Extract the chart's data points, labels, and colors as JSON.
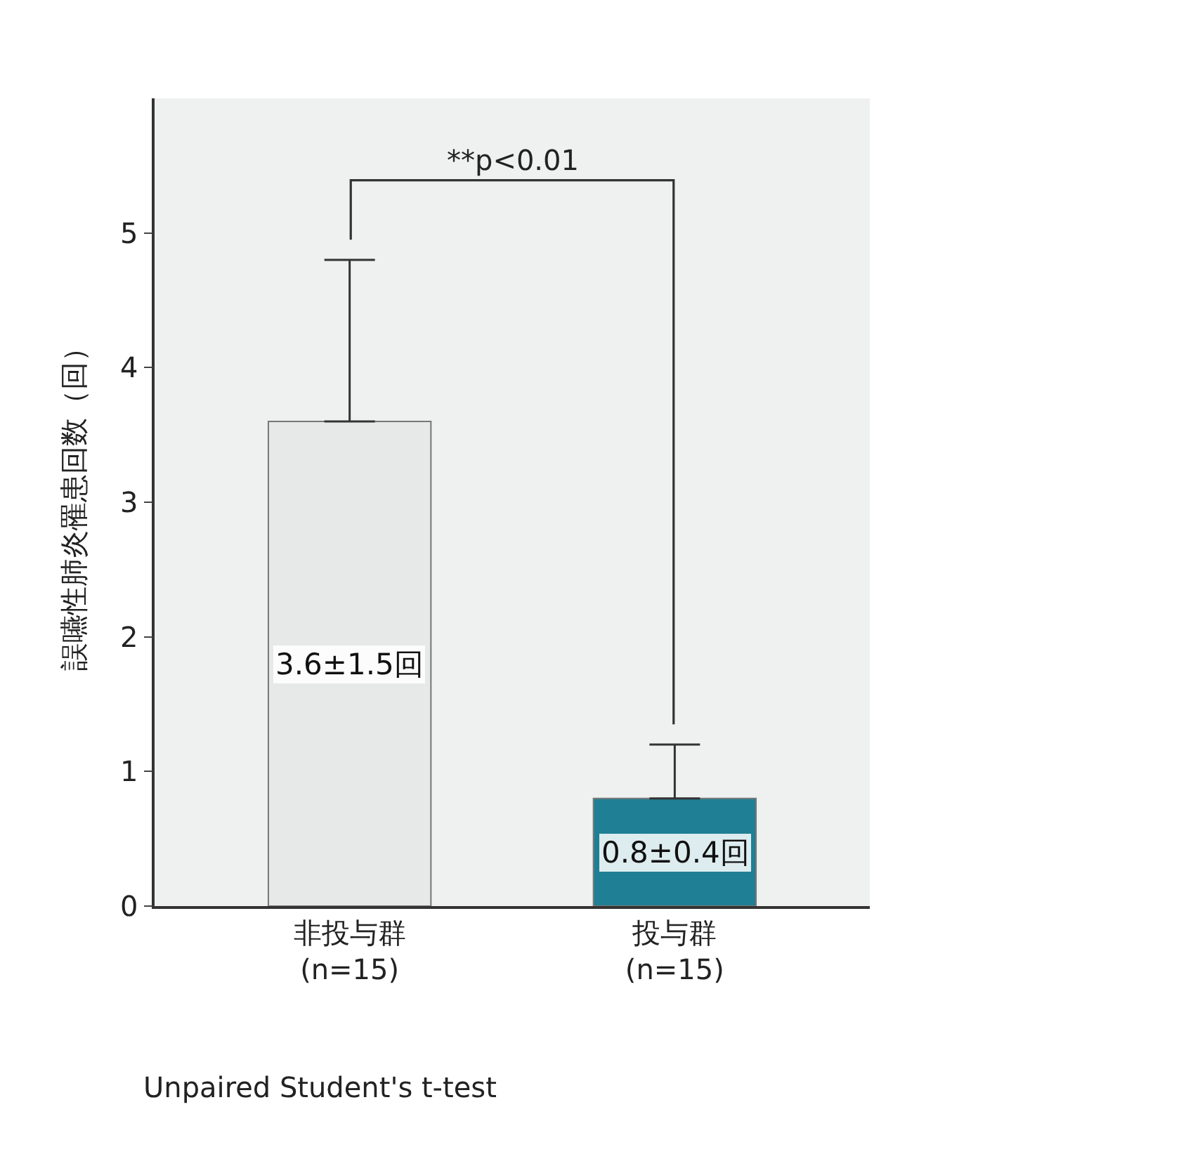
{
  "chart_data": {
    "type": "bar",
    "ylabel": "誤嚥性肺炎罹患回数（回）",
    "categories": [
      "非投与群\n(n=15)",
      "投与群\n(n=15)"
    ],
    "values": [
      3.6,
      0.8
    ],
    "colors": [
      "#e6e9e8",
      "#1f7f94"
    ],
    "errors": [
      [
        3.6,
        4.8
      ],
      [
        0.8,
        1.2
      ]
    ],
    "value_labels": [
      "3.6±1.5回",
      "0.8±0.4回"
    ],
    "ylim": [
      0,
      6
    ],
    "yticks": [
      0,
      1,
      2,
      3,
      4,
      5
    ],
    "grid": false,
    "annotations": [
      "**p<0.01",
      "Unpaired Student's t-test"
    ]
  }
}
